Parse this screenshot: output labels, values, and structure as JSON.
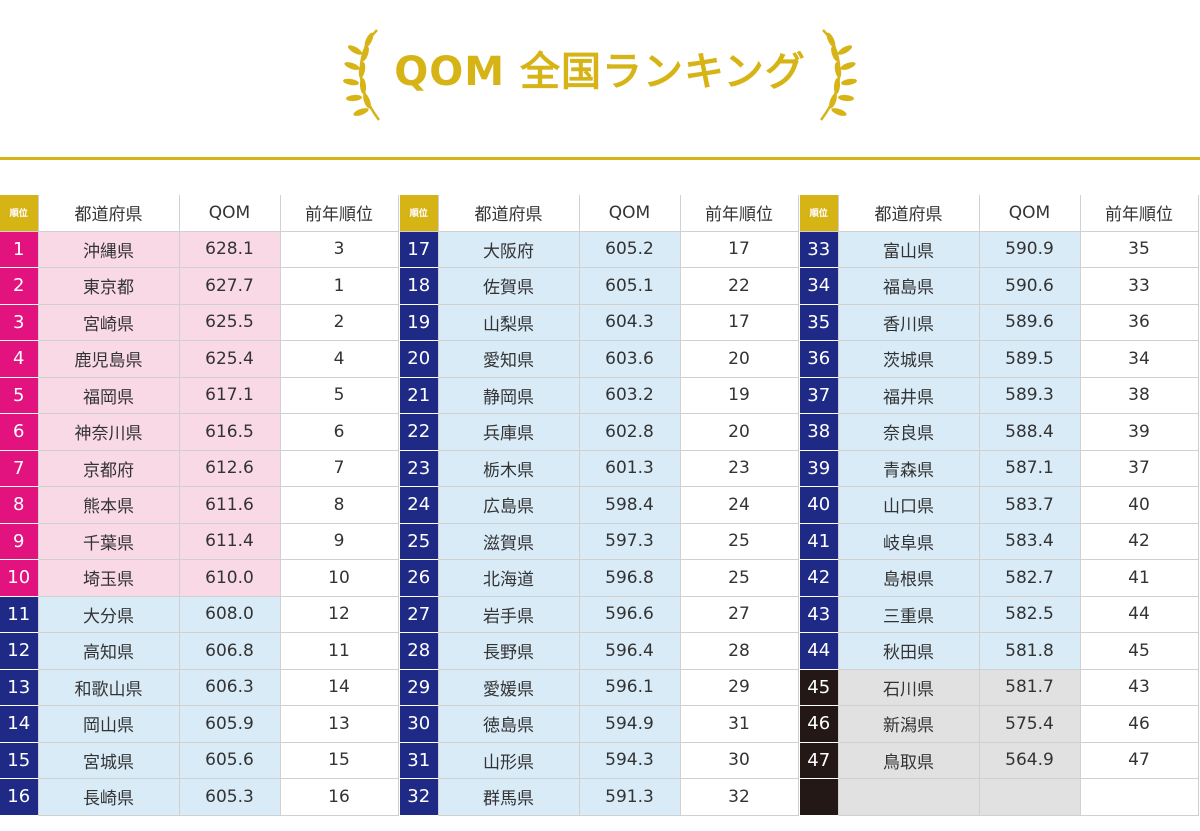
{
  "title": "QOM 全国ランキング",
  "colors": {
    "gold": "#d7b416",
    "tier1_rank": "#e2127f",
    "tier1_cell": "#f9d9e6",
    "tier2_rank": "#1f2a86",
    "tier2_cell": "#d8ebf7",
    "tier3_rank": "#231815",
    "tier3_cell": "#e1e1e1"
  },
  "columns": {
    "rank": "順位",
    "prefecture": "都道府県",
    "qom": "QOM",
    "prev_rank": "前年順位"
  },
  "tables": [
    {
      "rows": [
        {
          "rank": "1",
          "prefecture": "沖縄県",
          "qom": "628.1",
          "prev": "3",
          "tier": 1
        },
        {
          "rank": "2",
          "prefecture": "東京都",
          "qom": "627.7",
          "prev": "1",
          "tier": 1
        },
        {
          "rank": "3",
          "prefecture": "宮崎県",
          "qom": "625.5",
          "prev": "2",
          "tier": 1
        },
        {
          "rank": "4",
          "prefecture": "鹿児島県",
          "qom": "625.4",
          "prev": "4",
          "tier": 1
        },
        {
          "rank": "5",
          "prefecture": "福岡県",
          "qom": "617.1",
          "prev": "5",
          "tier": 1
        },
        {
          "rank": "6",
          "prefecture": "神奈川県",
          "qom": "616.5",
          "prev": "6",
          "tier": 1
        },
        {
          "rank": "7",
          "prefecture": "京都府",
          "qom": "612.6",
          "prev": "7",
          "tier": 1
        },
        {
          "rank": "8",
          "prefecture": "熊本県",
          "qom": "611.6",
          "prev": "8",
          "tier": 1
        },
        {
          "rank": "9",
          "prefecture": "千葉県",
          "qom": "611.4",
          "prev": "9",
          "tier": 1
        },
        {
          "rank": "10",
          "prefecture": "埼玉県",
          "qom": "610.0",
          "prev": "10",
          "tier": 1
        },
        {
          "rank": "11",
          "prefecture": "大分県",
          "qom": "608.0",
          "prev": "12",
          "tier": 2
        },
        {
          "rank": "12",
          "prefecture": "高知県",
          "qom": "606.8",
          "prev": "11",
          "tier": 2
        },
        {
          "rank": "13",
          "prefecture": "和歌山県",
          "qom": "606.3",
          "prev": "14",
          "tier": 2
        },
        {
          "rank": "14",
          "prefecture": "岡山県",
          "qom": "605.9",
          "prev": "13",
          "tier": 2
        },
        {
          "rank": "15",
          "prefecture": "宮城県",
          "qom": "605.6",
          "prev": "15",
          "tier": 2
        },
        {
          "rank": "16",
          "prefecture": "長崎県",
          "qom": "605.3",
          "prev": "16",
          "tier": 2
        }
      ]
    },
    {
      "rows": [
        {
          "rank": "17",
          "prefecture": "大阪府",
          "qom": "605.2",
          "prev": "17",
          "tier": 2
        },
        {
          "rank": "18",
          "prefecture": "佐賀県",
          "qom": "605.1",
          "prev": "22",
          "tier": 2
        },
        {
          "rank": "19",
          "prefecture": "山梨県",
          "qom": "604.3",
          "prev": "17",
          "tier": 2
        },
        {
          "rank": "20",
          "prefecture": "愛知県",
          "qom": "603.6",
          "prev": "20",
          "tier": 2
        },
        {
          "rank": "21",
          "prefecture": "静岡県",
          "qom": "603.2",
          "prev": "19",
          "tier": 2
        },
        {
          "rank": "22",
          "prefecture": "兵庫県",
          "qom": "602.8",
          "prev": "20",
          "tier": 2
        },
        {
          "rank": "23",
          "prefecture": "栃木県",
          "qom": "601.3",
          "prev": "23",
          "tier": 2
        },
        {
          "rank": "24",
          "prefecture": "広島県",
          "qom": "598.4",
          "prev": "24",
          "tier": 2
        },
        {
          "rank": "25",
          "prefecture": "滋賀県",
          "qom": "597.3",
          "prev": "25",
          "tier": 2
        },
        {
          "rank": "26",
          "prefecture": "北海道",
          "qom": "596.8",
          "prev": "25",
          "tier": 2
        },
        {
          "rank": "27",
          "prefecture": "岩手県",
          "qom": "596.6",
          "prev": "27",
          "tier": 2
        },
        {
          "rank": "28",
          "prefecture": "長野県",
          "qom": "596.4",
          "prev": "28",
          "tier": 2
        },
        {
          "rank": "29",
          "prefecture": "愛媛県",
          "qom": "596.1",
          "prev": "29",
          "tier": 2
        },
        {
          "rank": "30",
          "prefecture": "徳島県",
          "qom": "594.9",
          "prev": "31",
          "tier": 2
        },
        {
          "rank": "31",
          "prefecture": "山形県",
          "qom": "594.3",
          "prev": "30",
          "tier": 2
        },
        {
          "rank": "32",
          "prefecture": "群馬県",
          "qom": "591.3",
          "prev": "32",
          "tier": 2
        }
      ]
    },
    {
      "rows": [
        {
          "rank": "33",
          "prefecture": "富山県",
          "qom": "590.9",
          "prev": "35",
          "tier": 2
        },
        {
          "rank": "34",
          "prefecture": "福島県",
          "qom": "590.6",
          "prev": "33",
          "tier": 2
        },
        {
          "rank": "35",
          "prefecture": "香川県",
          "qom": "589.6",
          "prev": "36",
          "tier": 2
        },
        {
          "rank": "36",
          "prefecture": "茨城県",
          "qom": "589.5",
          "prev": "34",
          "tier": 2
        },
        {
          "rank": "37",
          "prefecture": "福井県",
          "qom": "589.3",
          "prev": "38",
          "tier": 2
        },
        {
          "rank": "38",
          "prefecture": "奈良県",
          "qom": "588.4",
          "prev": "39",
          "tier": 2
        },
        {
          "rank": "39",
          "prefecture": "青森県",
          "qom": "587.1",
          "prev": "37",
          "tier": 2
        },
        {
          "rank": "40",
          "prefecture": "山口県",
          "qom": "583.7",
          "prev": "40",
          "tier": 2
        },
        {
          "rank": "41",
          "prefecture": "岐阜県",
          "qom": "583.4",
          "prev": "42",
          "tier": 2
        },
        {
          "rank": "42",
          "prefecture": "島根県",
          "qom": "582.7",
          "prev": "41",
          "tier": 2
        },
        {
          "rank": "43",
          "prefecture": "三重県",
          "qom": "582.5",
          "prev": "44",
          "tier": 2
        },
        {
          "rank": "44",
          "prefecture": "秋田県",
          "qom": "581.8",
          "prev": "45",
          "tier": 2
        },
        {
          "rank": "45",
          "prefecture": "石川県",
          "qom": "581.7",
          "prev": "43",
          "tier": 3
        },
        {
          "rank": "46",
          "prefecture": "新潟県",
          "qom": "575.4",
          "prev": "46",
          "tier": 3
        },
        {
          "rank": "47",
          "prefecture": "鳥取県",
          "qom": "564.9",
          "prev": "47",
          "tier": 3
        },
        {
          "rank": "",
          "prefecture": "",
          "qom": "",
          "prev": "",
          "tier": 3
        }
      ]
    }
  ]
}
